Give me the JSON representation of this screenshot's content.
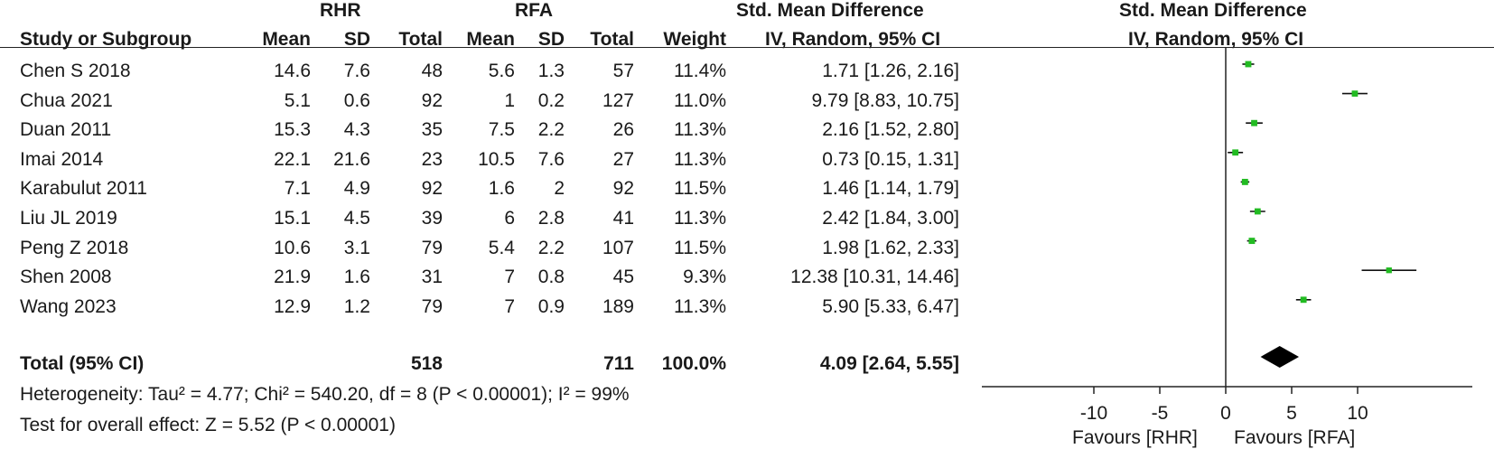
{
  "header": {
    "group1": "RHR",
    "group2": "RFA",
    "effect_title": "Std. Mean Difference",
    "study_col": "Study or Subgroup",
    "mean1": "Mean",
    "sd1": "SD",
    "total1": "Total",
    "mean2": "Mean",
    "sd2": "SD",
    "total2": "Total",
    "weight": "Weight",
    "method": "IV, Random, 95% CI",
    "plot_title": "Std. Mean Difference",
    "plot_method": "IV, Random, 95% CI"
  },
  "studies": [
    {
      "study": "Chen S 2018",
      "mean1": "14.6",
      "sd1": "7.6",
      "total1": "48",
      "mean2": "5.6",
      "sd2": "1.3",
      "total2": "57",
      "weight": "11.4%",
      "ci_text": "1.71 [1.26, 2.16]"
    },
    {
      "study": "Chua 2021",
      "mean1": "5.1",
      "sd1": "0.6",
      "total1": "92",
      "mean2": "1",
      "sd2": "0.2",
      "total2": "127",
      "weight": "11.0%",
      "ci_text": "9.79 [8.83, 10.75]"
    },
    {
      "study": "Duan 2011",
      "mean1": "15.3",
      "sd1": "4.3",
      "total1": "35",
      "mean2": "7.5",
      "sd2": "2.2",
      "total2": "26",
      "weight": "11.3%",
      "ci_text": "2.16 [1.52, 2.80]"
    },
    {
      "study": "Imai 2014",
      "mean1": "22.1",
      "sd1": "21.6",
      "total1": "23",
      "mean2": "10.5",
      "sd2": "7.6",
      "total2": "27",
      "weight": "11.3%",
      "ci_text": "0.73 [0.15, 1.31]"
    },
    {
      "study": "Karabulut 2011",
      "mean1": "7.1",
      "sd1": "4.9",
      "total1": "92",
      "mean2": "1.6",
      "sd2": "2",
      "total2": "92",
      "weight": "11.5%",
      "ci_text": "1.46 [1.14, 1.79]"
    },
    {
      "study": "Liu JL 2019",
      "mean1": "15.1",
      "sd1": "4.5",
      "total1": "39",
      "mean2": "6",
      "sd2": "2.8",
      "total2": "41",
      "weight": "11.3%",
      "ci_text": "2.42 [1.84, 3.00]"
    },
    {
      "study": "Peng Z 2018",
      "mean1": "10.6",
      "sd1": "3.1",
      "total1": "79",
      "mean2": "5.4",
      "sd2": "2.2",
      "total2": "107",
      "weight": "11.5%",
      "ci_text": "1.98 [1.62, 2.33]"
    },
    {
      "study": "Shen 2008",
      "mean1": "21.9",
      "sd1": "1.6",
      "total1": "31",
      "mean2": "7",
      "sd2": "0.8",
      "total2": "45",
      "weight": "9.3%",
      "ci_text": "12.38 [10.31, 14.46]"
    },
    {
      "study": "Wang 2023",
      "mean1": "12.9",
      "sd1": "1.2",
      "total1": "79",
      "mean2": "7",
      "sd2": "0.9",
      "total2": "189",
      "weight": "11.3%",
      "ci_text": "5.90 [5.33, 6.47]"
    }
  ],
  "total": {
    "label": "Total (95% CI)",
    "total1": "518",
    "total2": "711",
    "weight": "100.0%",
    "ci_text": "4.09 [2.64, 5.55]"
  },
  "heterogeneity": "Heterogeneity: Tau² = 4.77; Chi² = 540.20, df = 8 (P < 0.00001); I² = 99%",
  "overall_test": "Test for overall effect: Z = 5.52 (P < 0.00001)",
  "favours_left": "Favours [RHR]",
  "favours_right": "Favours [RFA]",
  "colors": {
    "marker": "#22bb22",
    "diamond": "#000000",
    "line": "#222222"
  },
  "chart_data": {
    "type": "forest",
    "x_ticks": [
      -10,
      -5,
      0,
      5,
      10
    ],
    "xlim": [
      -10,
      20
    ],
    "points": [
      {
        "study": "Chen S 2018",
        "est": 1.71,
        "lo": 1.26,
        "hi": 2.16,
        "weight": 11.4
      },
      {
        "study": "Chua 2021",
        "est": 9.79,
        "lo": 8.83,
        "hi": 10.75,
        "weight": 11.0
      },
      {
        "study": "Duan 2011",
        "est": 2.16,
        "lo": 1.52,
        "hi": 2.8,
        "weight": 11.3
      },
      {
        "study": "Imai 2014",
        "est": 0.73,
        "lo": 0.15,
        "hi": 1.31,
        "weight": 11.3
      },
      {
        "study": "Karabulut 2011",
        "est": 1.46,
        "lo": 1.14,
        "hi": 1.79,
        "weight": 11.5
      },
      {
        "study": "Liu JL 2019",
        "est": 2.42,
        "lo": 1.84,
        "hi": 3.0,
        "weight": 11.3
      },
      {
        "study": "Peng Z 2018",
        "est": 1.98,
        "lo": 1.62,
        "hi": 2.33,
        "weight": 11.5
      },
      {
        "study": "Shen 2008",
        "est": 12.38,
        "lo": 10.31,
        "hi": 14.46,
        "weight": 9.3
      },
      {
        "study": "Wang 2023",
        "est": 5.9,
        "lo": 5.33,
        "hi": 6.47,
        "weight": 11.3
      }
    ],
    "pooled": {
      "est": 4.09,
      "lo": 2.64,
      "hi": 5.55
    }
  }
}
